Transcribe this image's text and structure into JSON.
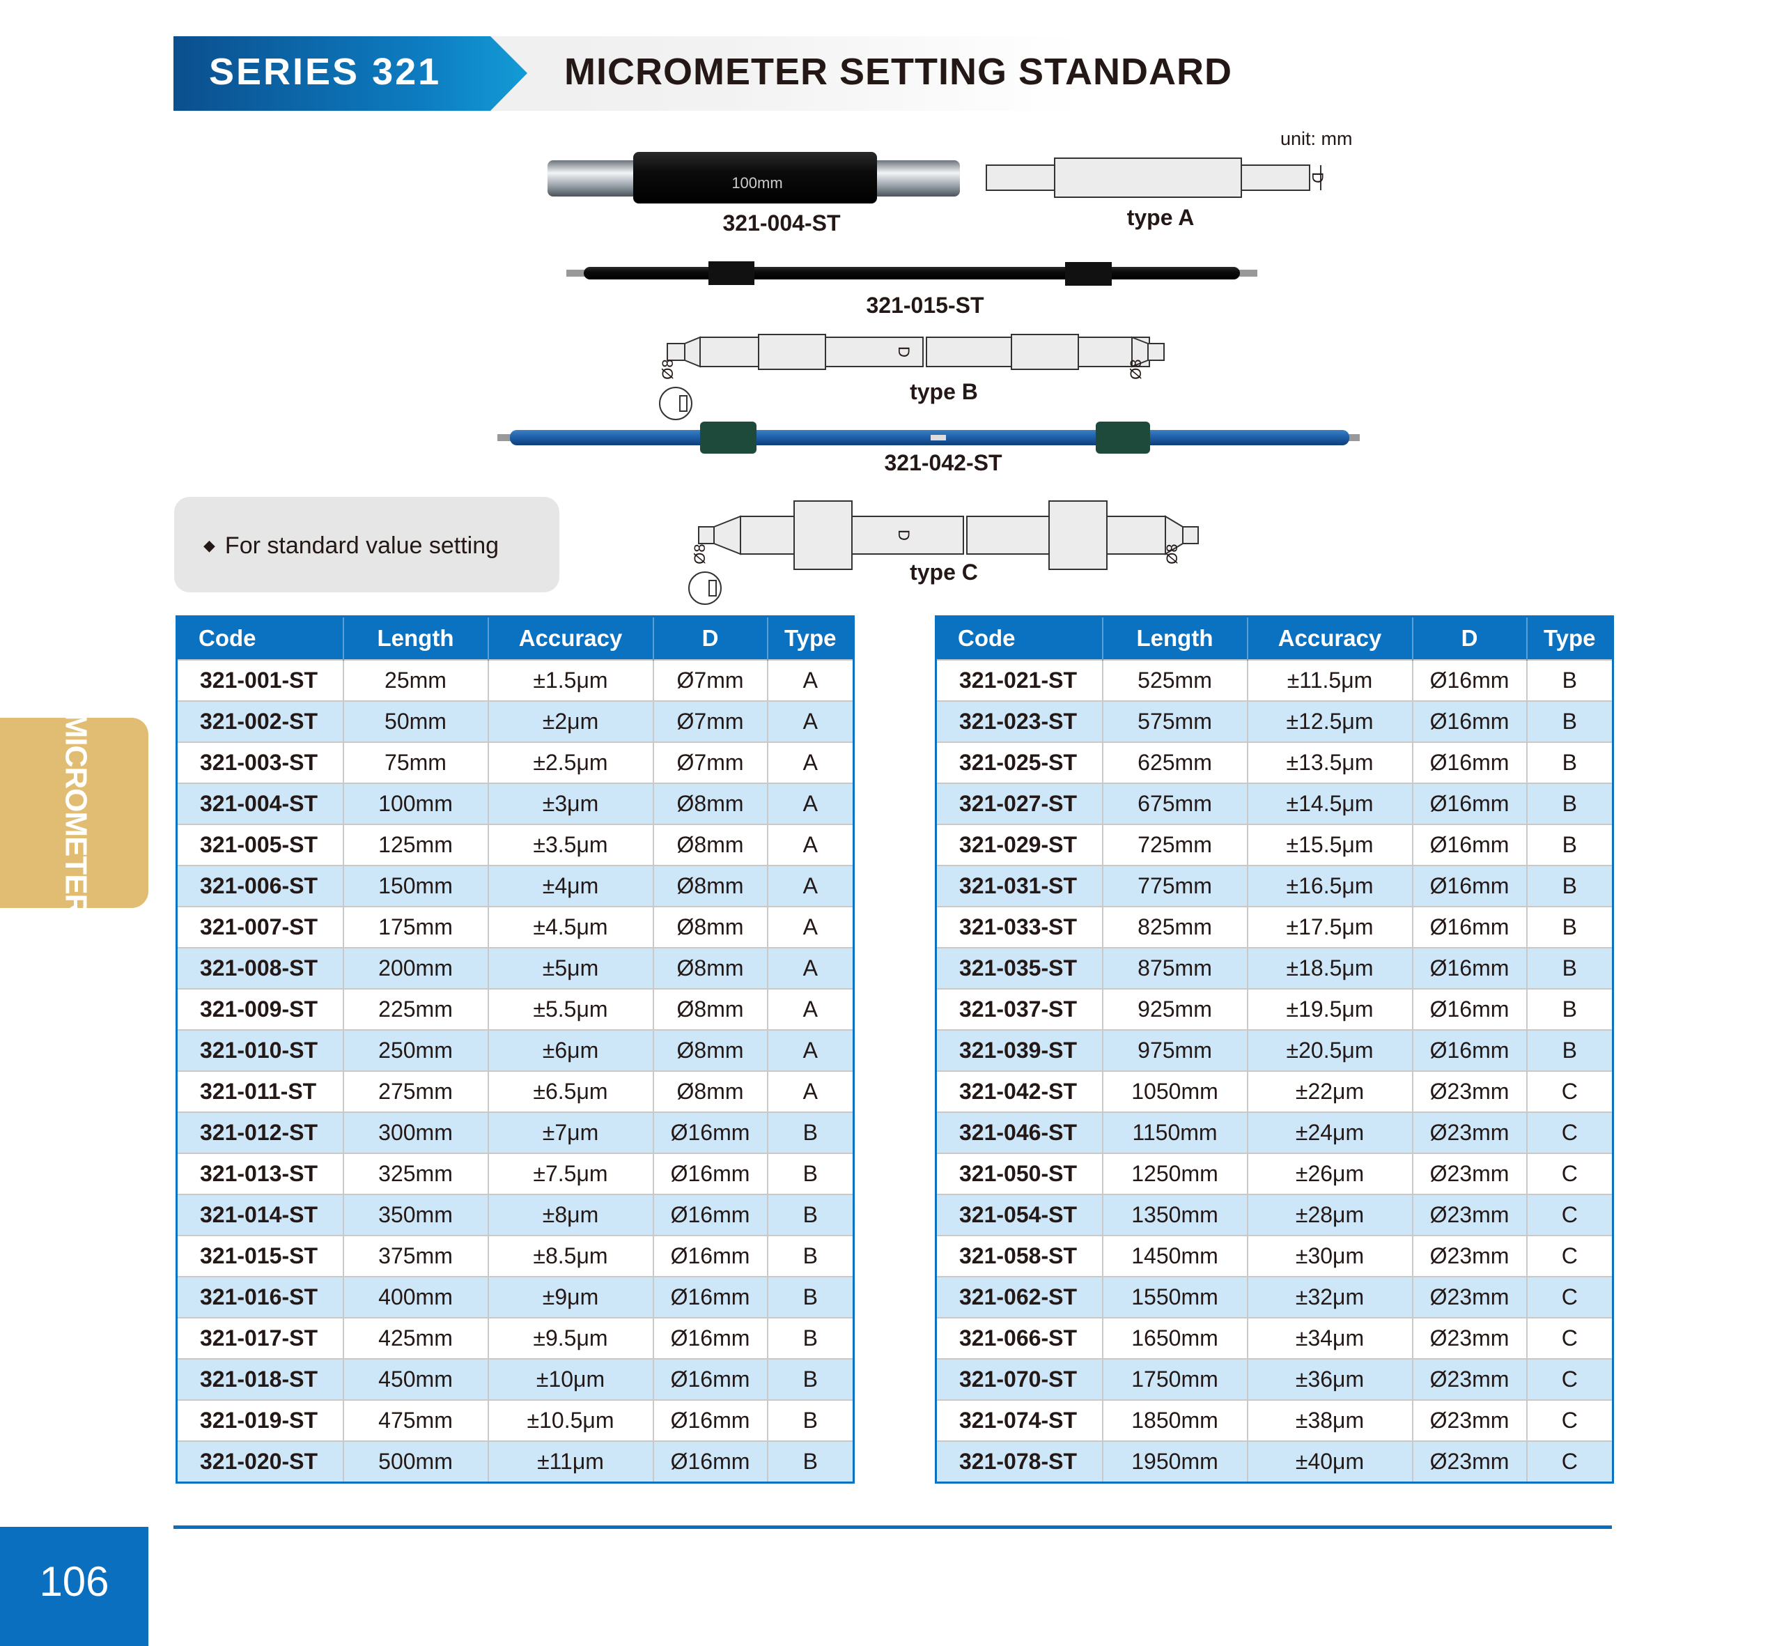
{
  "header": {
    "series": "SERIES 321",
    "title": "MICROMETER SETTING STANDARD"
  },
  "illustrations": {
    "unit": "unit: mm",
    "photo1_marking": "100mm",
    "photo1_label": "321-004-ST",
    "typeA_label": "type A",
    "photo2_label": "321-015-ST",
    "typeB_label": "type B",
    "photo3_label": "321-042-ST",
    "typeC_label": "type C",
    "dim_D": "D",
    "dim_phi8": "Ø8"
  },
  "info": {
    "text": "For standard value setting"
  },
  "side_tab": {
    "label": "MICROMETER",
    "color": "#e0bd72"
  },
  "page_number": "106",
  "colors": {
    "brand_blue": "#0b72c1",
    "alt_row": "#cde6f8"
  },
  "tables": {
    "columns": [
      "Code",
      "Length",
      "Accuracy",
      "D",
      "Type"
    ],
    "left": [
      [
        "321-001-ST",
        "25mm",
        "±1.5μm",
        "Ø7mm",
        "A"
      ],
      [
        "321-002-ST",
        "50mm",
        "±2μm",
        "Ø7mm",
        "A"
      ],
      [
        "321-003-ST",
        "75mm",
        "±2.5μm",
        "Ø7mm",
        "A"
      ],
      [
        "321-004-ST",
        "100mm",
        "±3μm",
        "Ø8mm",
        "A"
      ],
      [
        "321-005-ST",
        "125mm",
        "±3.5μm",
        "Ø8mm",
        "A"
      ],
      [
        "321-006-ST",
        "150mm",
        "±4μm",
        "Ø8mm",
        "A"
      ],
      [
        "321-007-ST",
        "175mm",
        "±4.5μm",
        "Ø8mm",
        "A"
      ],
      [
        "321-008-ST",
        "200mm",
        "±5μm",
        "Ø8mm",
        "A"
      ],
      [
        "321-009-ST",
        "225mm",
        "±5.5μm",
        "Ø8mm",
        "A"
      ],
      [
        "321-010-ST",
        "250mm",
        "±6μm",
        "Ø8mm",
        "A"
      ],
      [
        "321-011-ST",
        "275mm",
        "±6.5μm",
        "Ø8mm",
        "A"
      ],
      [
        "321-012-ST",
        "300mm",
        "±7μm",
        "Ø16mm",
        "B"
      ],
      [
        "321-013-ST",
        "325mm",
        "±7.5μm",
        "Ø16mm",
        "B"
      ],
      [
        "321-014-ST",
        "350mm",
        "±8μm",
        "Ø16mm",
        "B"
      ],
      [
        "321-015-ST",
        "375mm",
        "±8.5μm",
        "Ø16mm",
        "B"
      ],
      [
        "321-016-ST",
        "400mm",
        "±9μm",
        "Ø16mm",
        "B"
      ],
      [
        "321-017-ST",
        "425mm",
        "±9.5μm",
        "Ø16mm",
        "B"
      ],
      [
        "321-018-ST",
        "450mm",
        "±10μm",
        "Ø16mm",
        "B"
      ],
      [
        "321-019-ST",
        "475mm",
        "±10.5μm",
        "Ø16mm",
        "B"
      ],
      [
        "321-020-ST",
        "500mm",
        "±11μm",
        "Ø16mm",
        "B"
      ]
    ],
    "right": [
      [
        "321-021-ST",
        "525mm",
        "±11.5μm",
        "Ø16mm",
        "B"
      ],
      [
        "321-023-ST",
        "575mm",
        "±12.5μm",
        "Ø16mm",
        "B"
      ],
      [
        "321-025-ST",
        "625mm",
        "±13.5μm",
        "Ø16mm",
        "B"
      ],
      [
        "321-027-ST",
        "675mm",
        "±14.5μm",
        "Ø16mm",
        "B"
      ],
      [
        "321-029-ST",
        "725mm",
        "±15.5μm",
        "Ø16mm",
        "B"
      ],
      [
        "321-031-ST",
        "775mm",
        "±16.5μm",
        "Ø16mm",
        "B"
      ],
      [
        "321-033-ST",
        "825mm",
        "±17.5μm",
        "Ø16mm",
        "B"
      ],
      [
        "321-035-ST",
        "875mm",
        "±18.5μm",
        "Ø16mm",
        "B"
      ],
      [
        "321-037-ST",
        "925mm",
        "±19.5μm",
        "Ø16mm",
        "B"
      ],
      [
        "321-039-ST",
        "975mm",
        "±20.5μm",
        "Ø16mm",
        "B"
      ],
      [
        "321-042-ST",
        "1050mm",
        "±22μm",
        "Ø23mm",
        "C"
      ],
      [
        "321-046-ST",
        "1150mm",
        "±24μm",
        "Ø23mm",
        "C"
      ],
      [
        "321-050-ST",
        "1250mm",
        "±26μm",
        "Ø23mm",
        "C"
      ],
      [
        "321-054-ST",
        "1350mm",
        "±28μm",
        "Ø23mm",
        "C"
      ],
      [
        "321-058-ST",
        "1450mm",
        "±30μm",
        "Ø23mm",
        "C"
      ],
      [
        "321-062-ST",
        "1550mm",
        "±32μm",
        "Ø23mm",
        "C"
      ],
      [
        "321-066-ST",
        "1650mm",
        "±34μm",
        "Ø23mm",
        "C"
      ],
      [
        "321-070-ST",
        "1750mm",
        "±36μm",
        "Ø23mm",
        "C"
      ],
      [
        "321-074-ST",
        "1850mm",
        "±38μm",
        "Ø23mm",
        "C"
      ],
      [
        "321-078-ST",
        "1950mm",
        "±40μm",
        "Ø23mm",
        "C"
      ]
    ]
  }
}
